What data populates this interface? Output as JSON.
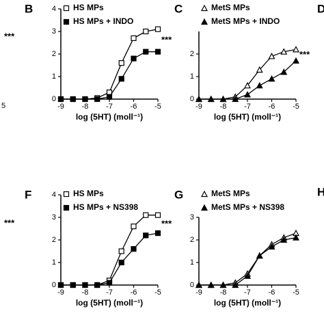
{
  "chart_data": [
    {
      "type": "line",
      "panel": "B",
      "x_label": "log (5HT) (moll⁻¹)",
      "annotation": "***",
      "x": [
        -9,
        -8.5,
        -8,
        -7.5,
        -7,
        -6.5,
        -6,
        -5.5,
        -5
      ],
      "xlim": [
        -9,
        -5
      ],
      "xticks": [
        -9,
        -8,
        -7,
        -6,
        -5
      ],
      "ylim": [
        0,
        4
      ],
      "yticks": [
        0,
        1,
        2,
        3,
        4
      ],
      "series": [
        {
          "name": "HS MPs",
          "color": "#000",
          "marker": "square",
          "filled": false,
          "values": [
            0,
            0,
            0,
            0.05,
            0.3,
            1.6,
            2.7,
            3.0,
            3.1
          ]
        },
        {
          "name": "HS MPs + INDO",
          "color": "#000",
          "marker": "square",
          "filled": true,
          "values": [
            0,
            0,
            0,
            0,
            0.1,
            0.9,
            1.8,
            2.1,
            2.1
          ]
        }
      ]
    },
    {
      "type": "line",
      "panel": "C",
      "x_label": "log (5HT) (moll⁻¹)",
      "annotation": "***",
      "x": [
        -9,
        -8.5,
        -8,
        -7.5,
        -7,
        -6.5,
        -6,
        -5.5,
        -5
      ],
      "xlim": [
        -9,
        -5
      ],
      "xticks": [
        -9,
        -8,
        -7,
        -6,
        -5
      ],
      "ylim": [
        0,
        3
      ],
      "yticks": [
        0,
        1,
        2
      ],
      "series": [
        {
          "name": "MetS MPs",
          "color": "#000",
          "marker": "triangle",
          "filled": false,
          "values": [
            0,
            0,
            0,
            0.1,
            0.6,
            1.3,
            1.9,
            2.1,
            2.2
          ]
        },
        {
          "name": "MetS MPs + INDO",
          "color": "#000",
          "marker": "triangle",
          "filled": true,
          "values": [
            0,
            0,
            0,
            0,
            0.2,
            0.6,
            0.9,
            1.2,
            1.7
          ]
        }
      ]
    },
    {
      "type": "line",
      "panel": "F",
      "x_label": "log (5HT) (moll⁻¹)",
      "annotation": "***",
      "x": [
        -9,
        -8.5,
        -8,
        -7.5,
        -7,
        -6.5,
        -6,
        -5.5,
        -5
      ],
      "xlim": [
        -9,
        -5
      ],
      "xticks": [
        -9,
        -8,
        -7,
        -6,
        -5
      ],
      "ylim": [
        0,
        4
      ],
      "yticks": [
        0,
        1,
        2,
        3,
        4
      ],
      "series": [
        {
          "name": "HS MPs",
          "color": "#000",
          "marker": "square",
          "filled": false,
          "values": [
            0,
            0,
            0,
            0,
            0.2,
            1.5,
            2.6,
            3.1,
            3.1
          ]
        },
        {
          "name": "HS MPs + NS398",
          "color": "#000",
          "marker": "square",
          "filled": true,
          "values": [
            0,
            0,
            0,
            0,
            0.1,
            1.0,
            1.6,
            2.2,
            2.3
          ]
        }
      ]
    },
    {
      "type": "line",
      "panel": "G",
      "x_label": "log (5HT) (moll⁻¹)",
      "x": [
        -9,
        -8.5,
        -8,
        -7.5,
        -7,
        -6.5,
        -6,
        -5.5,
        -5
      ],
      "xlim": [
        -9,
        -5
      ],
      "xticks": [
        -9,
        -8,
        -7,
        -6,
        -5
      ],
      "ylim": [
        0,
        3
      ],
      "yticks": [
        0,
        1,
        2,
        3
      ],
      "series": [
        {
          "name": "MetS MPs",
          "color": "#000",
          "marker": "triangle",
          "filled": false,
          "values": [
            0,
            0,
            0,
            0.1,
            0.5,
            1.3,
            1.8,
            2.1,
            2.3
          ]
        },
        {
          "name": "MetS MPs + NS398",
          "color": "#000",
          "marker": "triangle",
          "filled": true,
          "values": [
            0,
            0,
            0,
            0,
            0.4,
            1.3,
            1.7,
            2.0,
            2.1
          ]
        }
      ]
    }
  ],
  "edge_labels": [
    "***",
    "***",
    "5",
    "D",
    "H"
  ]
}
